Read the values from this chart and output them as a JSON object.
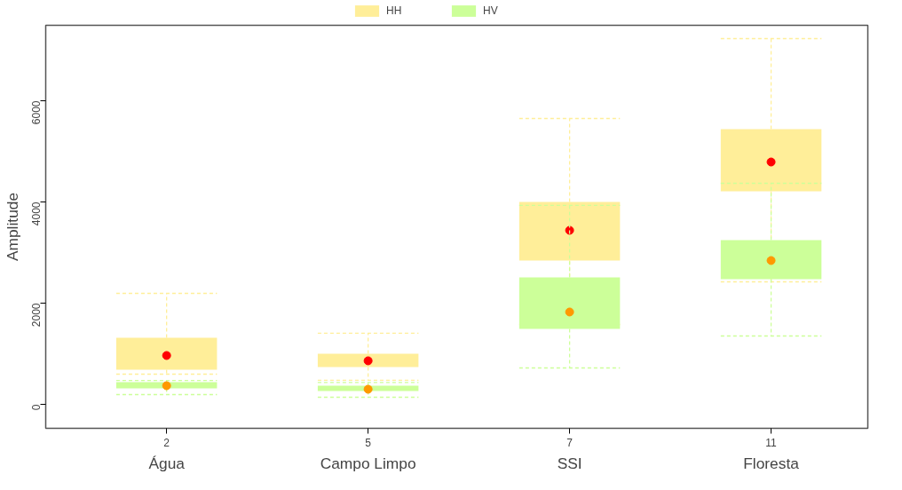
{
  "chart_data": {
    "type": "box",
    "ylabel": "Amplitude",
    "categories": [
      "Água",
      "Campo Limpo",
      "SSI",
      "Floresta"
    ],
    "series": [
      {
        "name": "HH",
        "color": "#ffee99",
        "boxes": [
          {
            "low": 596,
            "q1": 684,
            "median": 965,
            "q3": 1316,
            "high": 2193
          },
          {
            "low": 474,
            "q1": 737,
            "median": 860,
            "q3": 1000,
            "high": 1404
          },
          {
            "low": 1579,
            "q1": 2842,
            "median": 3439,
            "q3": 4000,
            "high": 5649
          },
          {
            "low": 2421,
            "q1": 4211,
            "median": 4789,
            "q3": 5439,
            "high": 7228
          }
        ]
      },
      {
        "name": "HV",
        "color": "#ccff99",
        "boxes": [
          {
            "low": 193,
            "q1": 316,
            "median": 368,
            "q3": 439,
            "high": 470
          },
          {
            "low": 140,
            "q1": 263,
            "median": 298,
            "q3": 368,
            "high": 430
          },
          {
            "low": 719,
            "q1": 1491,
            "median": 1825,
            "q3": 2509,
            "high": 3930
          },
          {
            "low": 1351,
            "q1": 2474,
            "median": 2842,
            "q3": 3246,
            "high": 4368
          }
        ]
      }
    ],
    "annotations": [
      "2",
      "5",
      "7",
      "11"
    ],
    "ylim": [
      -474,
      7491
    ],
    "yticks": [
      0,
      2000,
      4000,
      6000
    ],
    "grid": false,
    "legend": "top",
    "line_style": "dashed"
  }
}
